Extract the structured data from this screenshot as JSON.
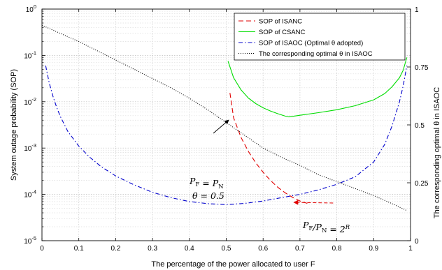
{
  "chart_data": {
    "type": "line",
    "xlabel": "The percentage of the power allocated to user F",
    "ylabel": "System outage probability (SOP)",
    "y2label": "The corresponding optimal θ in ISAOC",
    "xlim": [
      0,
      1
    ],
    "ylim": [
      1e-05,
      1
    ],
    "yscale": "log",
    "y2lim": [
      0,
      1
    ],
    "grid": true,
    "legend_position": "top-right",
    "x_ticks": [
      "0",
      "0.1",
      "0.2",
      "0.3",
      "0.4",
      "0.5",
      "0.6",
      "0.7",
      "0.8",
      "0.9",
      "1"
    ],
    "y_ticks": [
      {
        "base": "10",
        "exp": "0",
        "value": 1
      },
      {
        "base": "10",
        "exp": "-1",
        "value": 0.1
      },
      {
        "base": "10",
        "exp": "-2",
        "value": 0.01
      },
      {
        "base": "10",
        "exp": "-3",
        "value": 0.001
      },
      {
        "base": "10",
        "exp": "-4",
        "value": 0.0001
      },
      {
        "base": "10",
        "exp": "-5",
        "value": 1e-05
      }
    ],
    "y2_ticks": [
      "0",
      "0.25",
      "0.5",
      "0.75",
      "1"
    ],
    "series": [
      {
        "name": "SOP of ISANC",
        "color": "#e00000",
        "style": "dashed",
        "axis": "left",
        "x": [
          0.51,
          0.52,
          0.54,
          0.56,
          0.58,
          0.6,
          0.62,
          0.64,
          0.66,
          0.68,
          0.7,
          0.72
        ],
        "y": [
          0.0155,
          0.0045,
          0.0017,
          0.00085,
          0.00048,
          0.0003,
          0.0002,
          0.000142,
          0.000108,
          8.6e-05,
          7.2e-05,
          6.4e-05
        ]
      },
      {
        "name": "SOP of CSANC",
        "color": "#00dd00",
        "style": "solid",
        "axis": "left",
        "x": [
          0.505,
          0.52,
          0.54,
          0.56,
          0.58,
          0.6,
          0.62,
          0.64,
          0.66,
          0.67,
          0.7,
          0.75,
          0.8,
          0.85,
          0.9,
          0.93,
          0.95,
          0.97,
          0.98,
          0.99
        ],
        "y": [
          0.075,
          0.033,
          0.018,
          0.012,
          0.0091,
          0.0074,
          0.0063,
          0.0055,
          0.0049,
          0.0047,
          0.0051,
          0.0058,
          0.0067,
          0.0082,
          0.011,
          0.015,
          0.021,
          0.033,
          0.048,
          0.09
        ]
      },
      {
        "name": "SOP of ISAOC (Optimal θ adopted)",
        "color": "#0000cc",
        "style": "dashdot",
        "axis": "left",
        "x": [
          0.01,
          0.02,
          0.03,
          0.04,
          0.05,
          0.07,
          0.1,
          0.13,
          0.16,
          0.2,
          0.25,
          0.3,
          0.35,
          0.4,
          0.45,
          0.5,
          0.55,
          0.6,
          0.65,
          0.7,
          0.75,
          0.8,
          0.85,
          0.9,
          0.93,
          0.95,
          0.97,
          0.98,
          0.99
        ],
        "y": [
          0.06,
          0.025,
          0.013,
          0.0075,
          0.0048,
          0.0023,
          0.0011,
          0.00063,
          0.0004,
          0.00025,
          0.00016,
          0.000111,
          8.5e-05,
          7e-05,
          6.3e-05,
          6e-05,
          6.4e-05,
          7.2e-05,
          8.5e-05,
          0.0001,
          0.000125,
          0.000165,
          0.00024,
          0.0005,
          0.0012,
          0.003,
          0.01,
          0.022,
          0.06
        ]
      },
      {
        "name": "The corresponding optimal θ in ISAOC",
        "color": "#000000",
        "style": "dotted",
        "axis": "right",
        "x": [
          0.0,
          0.05,
          0.1,
          0.15,
          0.2,
          0.25,
          0.3,
          0.35,
          0.4,
          0.45,
          0.5,
          0.55,
          0.6,
          0.65,
          0.7,
          0.75,
          0.8,
          0.85,
          0.9,
          0.95,
          0.99
        ],
        "y": [
          0.93,
          0.895,
          0.86,
          0.82,
          0.78,
          0.74,
          0.7,
          0.66,
          0.615,
          0.565,
          0.51,
          0.455,
          0.4,
          0.36,
          0.325,
          0.285,
          0.255,
          0.225,
          0.195,
          0.16,
          0.13
        ]
      }
    ],
    "annotations": [
      {
        "line1": "P_F = P_N",
        "line2": "θ = 0.5",
        "arrow_from": [
          0.465,
          0.5
        ],
        "arrow_to": [
          0.505,
          0.5
        ]
      },
      {
        "line1": "P_F/P_N = 2^R",
        "arrow_from": [
          0.79,
          6.5e-05
        ],
        "arrow_to": [
          0.67,
          8e-05
        ]
      }
    ]
  }
}
